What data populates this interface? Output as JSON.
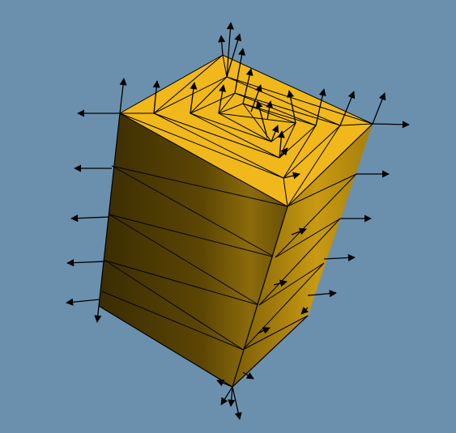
{
  "scene": {
    "object": "triangulated-box",
    "colors": {
      "background": "#6b90ae",
      "top_face": "#f0b81a",
      "front_face_dark": "#3a2c02",
      "front_face_mid": "#6a5206",
      "front_face_light": "#8a6a0b",
      "side_face": "#c99a12",
      "side_face_dark": "#7a5c05",
      "edge": "#000000",
      "normal_arrow": "#000000"
    },
    "glyph": "normal-vector-arrow"
  }
}
